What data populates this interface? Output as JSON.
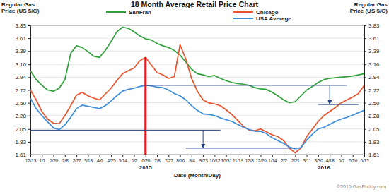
{
  "chart_data": {
    "type": "line",
    "title": "18 Month Average Retail Price Chart",
    "ylabel": [
      "Regular Gas",
      "Price (US $/G)"
    ],
    "y2label": [
      "Regular Gas",
      "Price (US $/G)"
    ],
    "xlabel": "Date (Month/Day)",
    "source": "©2016 GasBuddy.com",
    "year_labels": [
      {
        "text": "2015",
        "x": 20
      },
      {
        "text": "2016",
        "x": 51
      }
    ],
    "categories": [
      "12/13",
      null,
      "1/1",
      null,
      "1/20",
      null,
      "2/8",
      null,
      "2/27",
      null,
      "3/18",
      null,
      "4/6",
      null,
      "4/25",
      null,
      "5/14",
      null,
      "6/2",
      null,
      "6/20",
      null,
      "7/8",
      null,
      "7/27",
      null,
      "8/16",
      null,
      "9/4",
      null,
      "9/23",
      null,
      "10/12",
      null,
      "10/31",
      null,
      "11/19",
      null,
      "12/8",
      null,
      "12/26",
      null,
      "1/14",
      null,
      "2/2",
      null,
      "2/21",
      null,
      "3/11",
      null,
      "3/30",
      null,
      "4/18",
      null,
      "5/7",
      null,
      "5/26",
      null,
      "6/13"
    ],
    "series": [
      {
        "name": "SanFran",
        "color": "#2fa13a",
        "values": [
          3.05,
          2.9,
          2.8,
          2.72,
          2.7,
          2.75,
          2.9,
          3.35,
          3.48,
          3.45,
          3.38,
          3.3,
          3.28,
          3.4,
          3.55,
          3.72,
          3.8,
          3.78,
          3.72,
          3.65,
          3.6,
          3.58,
          3.52,
          3.48,
          3.45,
          3.4,
          3.32,
          3.2,
          3.08,
          3.0,
          2.98,
          2.95,
          2.97,
          2.92,
          2.88,
          2.85,
          2.83,
          2.82,
          2.8,
          2.76,
          2.74,
          2.73,
          2.68,
          2.62,
          2.55,
          2.5,
          2.52,
          2.62,
          2.72,
          2.78,
          2.85,
          2.9,
          2.92,
          2.93,
          2.94,
          2.95,
          2.96,
          2.98,
          3.0
        ]
      },
      {
        "name": "Chicago",
        "color": "#e8532b",
        "values": [
          2.72,
          2.55,
          2.35,
          2.22,
          2.15,
          2.14,
          2.28,
          2.45,
          2.63,
          2.68,
          2.62,
          2.58,
          2.55,
          2.65,
          2.75,
          2.88,
          3.0,
          3.05,
          3.1,
          3.22,
          3.28,
          3.15,
          3.02,
          2.98,
          2.92,
          2.95,
          3.5,
          3.25,
          2.92,
          2.7,
          2.55,
          2.5,
          2.48,
          2.45,
          2.38,
          2.3,
          2.2,
          2.1,
          2.03,
          2.02,
          2.05,
          2.0,
          1.95,
          1.92,
          1.85,
          1.72,
          1.64,
          1.72,
          1.92,
          2.05,
          2.18,
          2.28,
          2.35,
          2.42,
          2.5,
          2.55,
          2.6,
          2.66,
          2.8
        ]
      },
      {
        "name": "USA Average",
        "color": "#3b8fdc",
        "values": [
          2.58,
          2.4,
          2.28,
          2.17,
          2.07,
          2.04,
          2.12,
          2.25,
          2.4,
          2.46,
          2.44,
          2.42,
          2.4,
          2.45,
          2.53,
          2.62,
          2.7,
          2.73,
          2.75,
          2.78,
          2.8,
          2.79,
          2.77,
          2.76,
          2.72,
          2.66,
          2.62,
          2.55,
          2.45,
          2.37,
          2.31,
          2.3,
          2.28,
          2.24,
          2.21,
          2.18,
          2.13,
          2.08,
          2.04,
          2.01,
          2.01,
          1.97,
          1.9,
          1.85,
          1.8,
          1.74,
          1.71,
          1.73,
          1.86,
          1.96,
          2.05,
          2.08,
          2.13,
          2.18,
          2.22,
          2.25,
          2.29,
          2.33,
          2.37
        ]
      }
    ],
    "ylim": [
      1.61,
      3.83
    ],
    "yticks": [
      1.61,
      1.83,
      2.05,
      2.28,
      {
        "value": 2.5,
        "label": "2.50"
      },
      2.72,
      2.94,
      3.16,
      3.39,
      3.61,
      3.83
    ],
    "y2lim": [
      1.61,
      3.83
    ],
    "y2ticks": [
      1.61,
      1.83,
      2.05,
      2.28,
      {
        "value": 2.5,
        "label": "2.50"
      },
      2.72,
      2.94,
      3.16,
      3.39,
      3.61,
      3.83
    ],
    "grid": true,
    "legend": "top",
    "reference_lines": [
      {
        "x": [
          20,
          20
        ],
        "y": [
          1.61,
          3.28
        ],
        "color": "#e3161b",
        "line_style": "thick",
        "marker": "none"
      },
      {
        "x": [
          20,
          55
        ],
        "y": [
          2.8,
          2.8
        ],
        "color": "#24408e",
        "line_style": "solid",
        "marker": "none"
      },
      {
        "x": [
          0,
          33
        ],
        "y": [
          2.03,
          2.03
        ],
        "color": "#24408e",
        "line_style": "solid",
        "marker": "none"
      },
      {
        "x": [
          30,
          30
        ],
        "y": [
          2.03,
          1.72
        ],
        "color": "#24408e",
        "line_style": "solid",
        "marker": "arrow"
      },
      {
        "x": [
          27,
          46
        ],
        "y": [
          1.72,
          1.72
        ],
        "color": "#24408e",
        "line_style": "solid",
        "marker": "none"
      },
      {
        "x": [
          50,
          57
        ],
        "y": [
          2.47,
          2.47
        ],
        "color": "#24408e",
        "line_style": "solid",
        "marker": "none"
      },
      {
        "x": [
          52,
          52
        ],
        "y": [
          2.8,
          2.47
        ],
        "color": "#24408e",
        "line_style": "solid",
        "marker": "arrow"
      }
    ]
  }
}
